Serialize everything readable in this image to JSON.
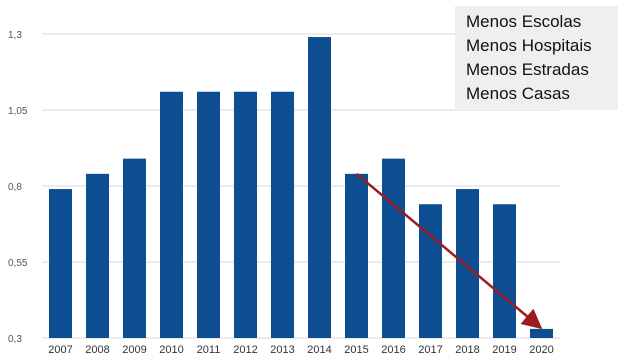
{
  "chart_data": {
    "type": "bar",
    "title": "",
    "xlabel": "",
    "ylabel": "",
    "categories": [
      "2007",
      "2008",
      "2009",
      "2010",
      "2011",
      "2012",
      "2013",
      "2014",
      "2015",
      "2016",
      "2017",
      "2018",
      "2019",
      "2020"
    ],
    "values": [
      0.79,
      0.84,
      0.89,
      1.11,
      1.11,
      1.11,
      1.11,
      1.29,
      0.84,
      0.89,
      0.74,
      0.79,
      0.74,
      0.33
    ],
    "ylim": [
      0.3,
      1.3
    ],
    "yticks": [
      0.3,
      0.55,
      0.8,
      1.05,
      1.3
    ],
    "ytick_labels": [
      "0,3",
      "0,55",
      "0,8",
      "1,05",
      "1,3"
    ],
    "grid": true,
    "bar_color": "#0d4d92",
    "gridline_color": "#d9d9d9",
    "arrow": {
      "from": "2015",
      "to": "2020",
      "color": "#9e1b22"
    }
  },
  "callout": {
    "lines": [
      "Menos Escolas",
      "Menos Hospitais",
      "Menos Estradas",
      "Menos Casas"
    ],
    "background": "#efefef"
  }
}
